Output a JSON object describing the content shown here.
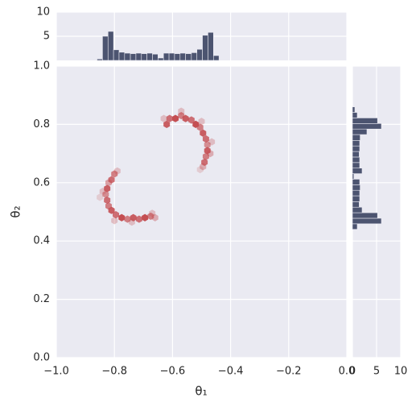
{
  "chart_data": [
    {
      "type": "hexbin",
      "xlabel": "θ₁",
      "ylabel": "θ₂",
      "color": "#c44e52",
      "grid": true,
      "xlim": [
        -1,
        0
      ],
      "ylim": [
        0,
        1
      ],
      "xticks": [
        {
          "value": -1,
          "label": "−1.0"
        },
        {
          "value": -0.8,
          "label": "−0.8"
        },
        {
          "value": -0.6,
          "label": "−0.6"
        },
        {
          "value": -0.4,
          "label": "−0.4"
        },
        {
          "value": -0.2,
          "label": "−0.2"
        },
        {
          "value": 0,
          "label": "0.0"
        }
      ],
      "yticks": [
        {
          "value": 0,
          "label": "0.0"
        },
        0.2,
        0.4,
        0.6,
        0.8,
        {
          "value": 1,
          "label": "1.0"
        }
      ],
      "x": [
        -0.8,
        -0.81,
        -0.82,
        -0.825,
        -0.83,
        -0.825,
        -0.82,
        -0.81,
        -0.795,
        -0.775,
        -0.755,
        -0.735,
        -0.715,
        -0.695,
        -0.675,
        -0.66,
        -0.79,
        -0.84,
        -0.8,
        -0.74,
        -0.67,
        -0.85,
        -0.62,
        -0.61,
        -0.59,
        -0.57,
        -0.555,
        -0.535,
        -0.52,
        -0.505,
        -0.495,
        -0.485,
        -0.48,
        -0.48,
        -0.485,
        -0.49,
        -0.495,
        -0.63,
        -0.57,
        -0.5,
        -0.465,
        -0.47,
        -0.505
      ],
      "y": [
        0.63,
        0.61,
        0.6,
        0.58,
        0.56,
        0.54,
        0.52,
        0.505,
        0.49,
        0.48,
        0.475,
        0.48,
        0.475,
        0.48,
        0.485,
        0.48,
        0.64,
        0.57,
        0.47,
        0.465,
        0.495,
        0.55,
        0.8,
        0.82,
        0.82,
        0.83,
        0.82,
        0.815,
        0.8,
        0.79,
        0.77,
        0.75,
        0.73,
        0.71,
        0.69,
        0.67,
        0.655,
        0.82,
        0.845,
        0.81,
        0.74,
        0.7,
        0.645
      ],
      "counts": [
        6,
        7,
        4,
        8,
        5,
        7,
        6,
        8,
        7,
        9,
        6,
        8,
        7,
        9,
        6,
        3,
        2,
        2,
        2,
        2,
        2,
        1,
        8,
        7,
        9,
        6,
        8,
        7,
        9,
        6,
        8,
        7,
        5,
        8,
        6,
        7,
        3,
        2,
        2,
        2,
        2,
        3,
        1
      ]
    },
    {
      "type": "histogram",
      "orientation": "vertical",
      "color": "#4c5470",
      "grid": true,
      "bins": [
        -0.86,
        -0.841,
        -0.822,
        -0.803,
        -0.784,
        -0.765,
        -0.745,
        -0.726,
        -0.707,
        -0.688,
        -0.669,
        -0.65,
        -0.631,
        -0.612,
        -0.593,
        -0.574,
        -0.555,
        -0.535,
        -0.516,
        -0.497,
        -0.478,
        -0.459,
        -0.44
      ],
      "counts": [
        0.3,
        5,
        6,
        2.2,
        1.7,
        1.5,
        1.4,
        1.5,
        1.4,
        1.5,
        1.3,
        0.5,
        1.5,
        1.5,
        1.4,
        1.5,
        1.4,
        1.6,
        2.3,
        5.2,
        5.8,
        1
      ],
      "ylim": [
        0,
        10
      ],
      "yticks": [
        5,
        10
      ]
    },
    {
      "type": "histogram",
      "orientation": "horizontal",
      "color": "#4c5470",
      "grid": true,
      "bins": [
        0.44,
        0.459,
        0.478,
        0.497,
        0.516,
        0.535,
        0.555,
        0.574,
        0.593,
        0.612,
        0.631,
        0.65,
        0.669,
        0.688,
        0.707,
        0.726,
        0.745,
        0.765,
        0.784,
        0.803,
        0.822,
        0.841,
        0.86
      ],
      "counts": [
        1,
        6,
        5.2,
        2,
        1.4,
        1.5,
        1.5,
        1.6,
        1.5,
        0.3,
        2,
        1.5,
        1.5,
        1.4,
        1.5,
        1.5,
        1.6,
        3,
        6,
        5.2,
        1,
        0.5
      ],
      "xlim": [
        0,
        10
      ],
      "xticks": [
        0,
        5,
        10
      ]
    }
  ]
}
